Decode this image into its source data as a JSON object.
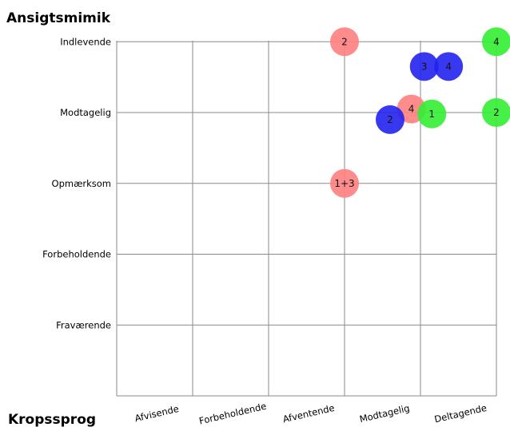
{
  "chart_data": {
    "type": "scatter",
    "ylabel": "Ansigtsmimik",
    "xlabel": "Kropssprog",
    "x_categories": [
      "Afvisende",
      "Forbeholdende",
      "Afventende",
      "Modtagelig",
      "Deltagende"
    ],
    "y_categories": [
      "Fraværende",
      "Forbeholdende",
      "Opmærksom",
      "Modtagelig",
      "Indlevende"
    ],
    "grid": true,
    "series": [
      {
        "color": "#ff8080",
        "points": [
          {
            "x": 3.0,
            "y": 5.0,
            "label": "2"
          },
          {
            "x": 3.88,
            "y": 4.05,
            "label": "4"
          },
          {
            "x": 3.0,
            "y": 3.0,
            "label": "1+3"
          }
        ]
      },
      {
        "color": "#2222ee",
        "points": [
          {
            "x": 4.05,
            "y": 4.65,
            "label": "3"
          },
          {
            "x": 4.37,
            "y": 4.65,
            "label": "4"
          },
          {
            "x": 3.6,
            "y": 3.9,
            "label": "2"
          }
        ]
      },
      {
        "color": "#33ee33",
        "points": [
          {
            "x": 5.0,
            "y": 5.0,
            "label": "4"
          },
          {
            "x": 4.15,
            "y": 3.98,
            "label": "1"
          },
          {
            "x": 5.0,
            "y": 4.0,
            "label": "2"
          }
        ]
      }
    ]
  }
}
